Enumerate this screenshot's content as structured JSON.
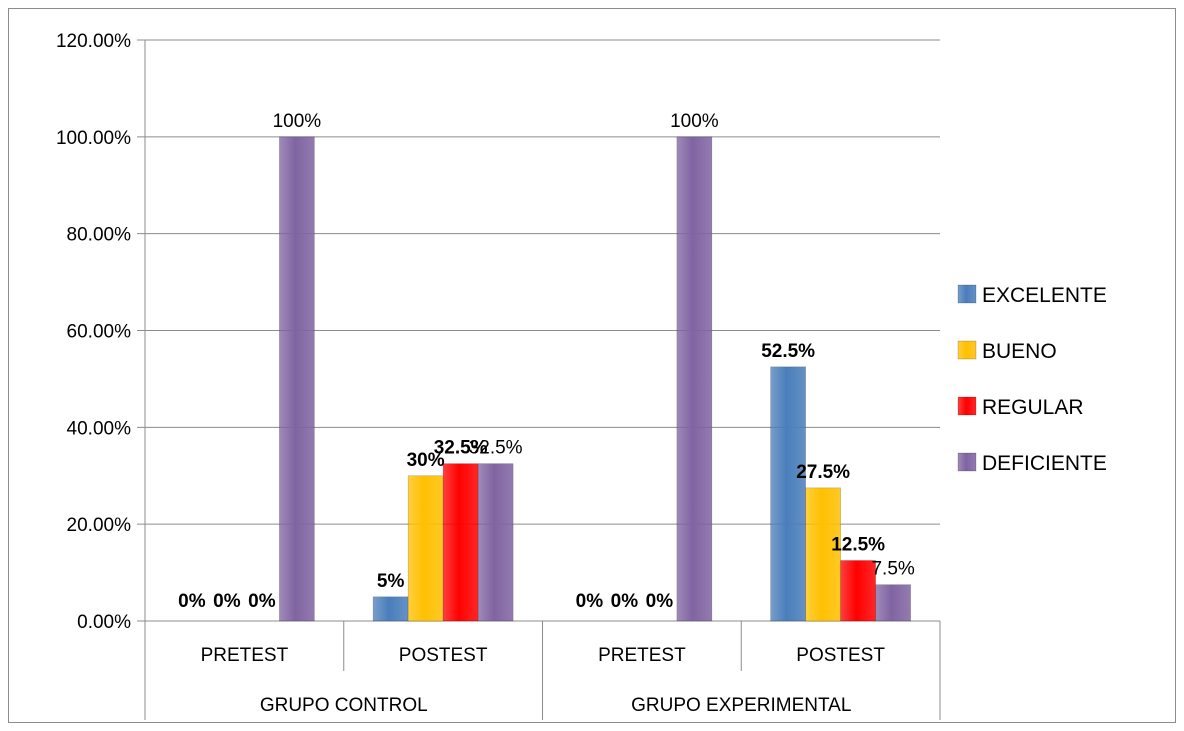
{
  "chart_data": {
    "type": "bar",
    "title": "",
    "xlabel": "",
    "ylabel": "",
    "ylim": [
      0,
      120
    ],
    "yticks": [
      "0.00%",
      "20.00%",
      "40.00%",
      "60.00%",
      "80.00%",
      "100.00%",
      "120.00%"
    ],
    "ytick_values": [
      0,
      20,
      40,
      60,
      80,
      100,
      120
    ],
    "groups": [
      {
        "label": "GRUPO CONTROL",
        "categories": [
          "PRETEST",
          "POSTEST"
        ]
      },
      {
        "label": "GRUPO EXPERIMENTAL",
        "categories": [
          "PRETEST",
          "POSTEST"
        ]
      }
    ],
    "categories": [
      "PRETEST",
      "POSTEST",
      "PRETEST",
      "POSTEST"
    ],
    "legend_position": "right",
    "grid": true,
    "series": [
      {
        "name": "EXCELENTE",
        "color": "#4a7ebb",
        "values": [
          0,
          5,
          0,
          52.5
        ],
        "labels": [
          "0%",
          "5%",
          "0%",
          "52.5%"
        ],
        "label_bold": [
          true,
          true,
          true,
          true
        ]
      },
      {
        "name": "BUENO",
        "color": "#ffc000",
        "values": [
          0,
          30,
          0,
          27.5
        ],
        "labels": [
          "0%",
          "30%",
          "0%",
          "27.5%"
        ],
        "label_bold": [
          true,
          true,
          true,
          true
        ]
      },
      {
        "name": "REGULAR",
        "color": "#ff0000",
        "values": [
          0,
          32.5,
          0,
          12.5
        ],
        "labels": [
          "0%",
          "32.5%",
          "0%",
          "12.5%"
        ],
        "label_bold": [
          true,
          true,
          true,
          true
        ]
      },
      {
        "name": "DEFICIENTE",
        "color": "#8064a2",
        "values": [
          100,
          32.5,
          100,
          7.5
        ],
        "labels": [
          "100%",
          "32.5%",
          "100%",
          "7.5%"
        ],
        "label_bold": [
          false,
          false,
          false,
          false
        ]
      }
    ]
  }
}
